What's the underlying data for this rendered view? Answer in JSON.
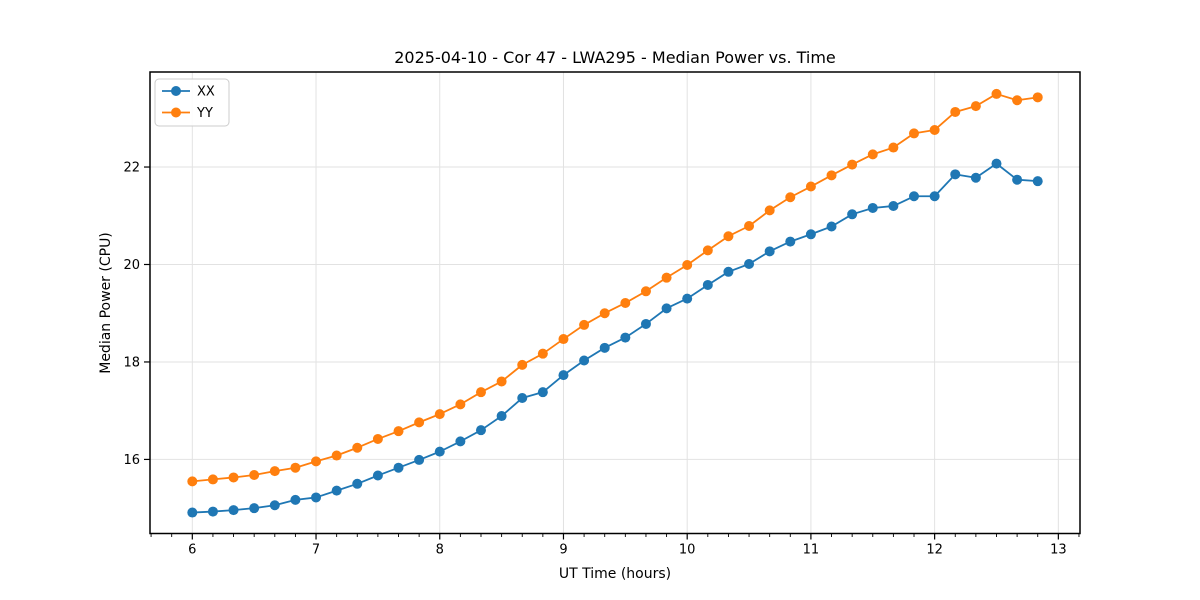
{
  "window": {
    "background": "#ffffff"
  },
  "chart_data": {
    "type": "line",
    "title": "2025-04-10 - Cor 47 - LWA295 - Median Power vs. Time",
    "xlabel": "UT Time (hours)",
    "ylabel": "Median Power (CPU)",
    "xlim": [
      5.658,
      13.175
    ],
    "ylim": [
      14.48,
      23.95
    ],
    "xticks": [
      6,
      7,
      8,
      9,
      10,
      11,
      12,
      13
    ],
    "yticks": [
      16,
      18,
      20,
      22
    ],
    "x_minor_step": 0.166667,
    "grid": true,
    "grid_color": "#e2e2e2",
    "legend_position": "upper-left",
    "x": [
      6.0,
      6.1667,
      6.3333,
      6.5,
      6.6667,
      6.8333,
      7.0,
      7.1667,
      7.3333,
      7.5,
      7.6667,
      7.8333,
      8.0,
      8.1667,
      8.3333,
      8.5,
      8.6667,
      8.8333,
      9.0,
      9.1667,
      9.3333,
      9.5,
      9.6667,
      9.8333,
      10.0,
      10.1667,
      10.3333,
      10.5,
      10.6667,
      10.8333,
      11.0,
      11.1667,
      11.3333,
      11.5,
      11.6667,
      11.8333,
      12.0,
      12.1667,
      12.3333,
      12.5,
      12.6667,
      12.8333
    ],
    "series": [
      {
        "name": "XX",
        "color": "#1f77b4",
        "values": [
          14.91,
          14.93,
          14.96,
          15.0,
          15.06,
          15.17,
          15.22,
          15.36,
          15.5,
          15.67,
          15.83,
          15.99,
          16.16,
          16.37,
          16.6,
          16.89,
          17.26,
          17.38,
          17.73,
          18.03,
          18.29,
          18.5,
          18.78,
          19.1,
          19.3,
          19.58,
          19.85,
          20.01,
          20.27,
          20.47,
          20.62,
          20.78,
          21.03,
          21.16,
          21.2,
          21.4,
          21.4,
          21.85,
          21.78,
          22.07,
          21.74,
          21.71
        ]
      },
      {
        "name": "YY",
        "color": "#ff7f0e",
        "values": [
          15.55,
          15.59,
          15.63,
          15.68,
          15.76,
          15.83,
          15.96,
          16.08,
          16.24,
          16.42,
          16.58,
          16.76,
          16.93,
          17.13,
          17.38,
          17.6,
          17.94,
          18.17,
          18.47,
          18.76,
          19.0,
          19.21,
          19.45,
          19.73,
          19.99,
          20.29,
          20.58,
          20.79,
          21.11,
          21.38,
          21.6,
          21.83,
          22.05,
          22.26,
          22.4,
          22.69,
          22.76,
          23.13,
          23.25,
          23.5,
          23.37,
          23.43
        ]
      }
    ]
  }
}
